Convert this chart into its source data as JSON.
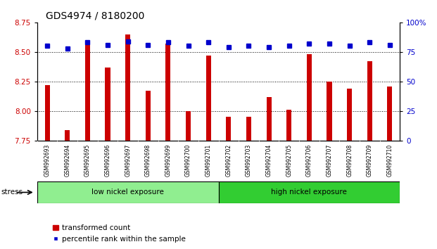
{
  "title": "GDS4974 / 8180200",
  "samples": [
    "GSM992693",
    "GSM992694",
    "GSM992695",
    "GSM992696",
    "GSM992697",
    "GSM992698",
    "GSM992699",
    "GSM992700",
    "GSM992701",
    "GSM992702",
    "GSM992703",
    "GSM992704",
    "GSM992705",
    "GSM992706",
    "GSM992707",
    "GSM992708",
    "GSM992709",
    "GSM992710"
  ],
  "bar_values": [
    8.22,
    7.84,
    8.58,
    8.37,
    8.65,
    8.17,
    8.57,
    8.0,
    8.47,
    7.95,
    7.95,
    8.12,
    8.01,
    8.48,
    8.25,
    8.19,
    8.42,
    8.21
  ],
  "dot_values": [
    80,
    78,
    83,
    81,
    84,
    81,
    83,
    80,
    83,
    79,
    80,
    79,
    80,
    82,
    82,
    80,
    83,
    81
  ],
  "ylim_left": [
    7.75,
    8.75
  ],
  "ylim_right": [
    0,
    100
  ],
  "yticks_left": [
    7.75,
    8.0,
    8.25,
    8.5,
    8.75
  ],
  "yticks_right": [
    0,
    25,
    50,
    75,
    100
  ],
  "bar_color": "#CC0000",
  "dot_color": "#0000CC",
  "bg_color": "#FFFFFF",
  "plot_bg": "#FFFFFF",
  "tick_bg_color": "#C8C8C8",
  "low_nickel_count": 9,
  "low_nickel_label": "low nickel exposure",
  "high_nickel_label": "high nickel exposure",
  "low_nickel_color": "#90EE90",
  "high_nickel_color": "#32CD32",
  "stress_label": "stress",
  "legend_bar_label": "transformed count",
  "legend_dot_label": "percentile rank within the sample",
  "tick_label_color_left": "#CC0000",
  "tick_label_color_right": "#0000CC",
  "title_fontsize": 10,
  "bar_width": 0.25
}
